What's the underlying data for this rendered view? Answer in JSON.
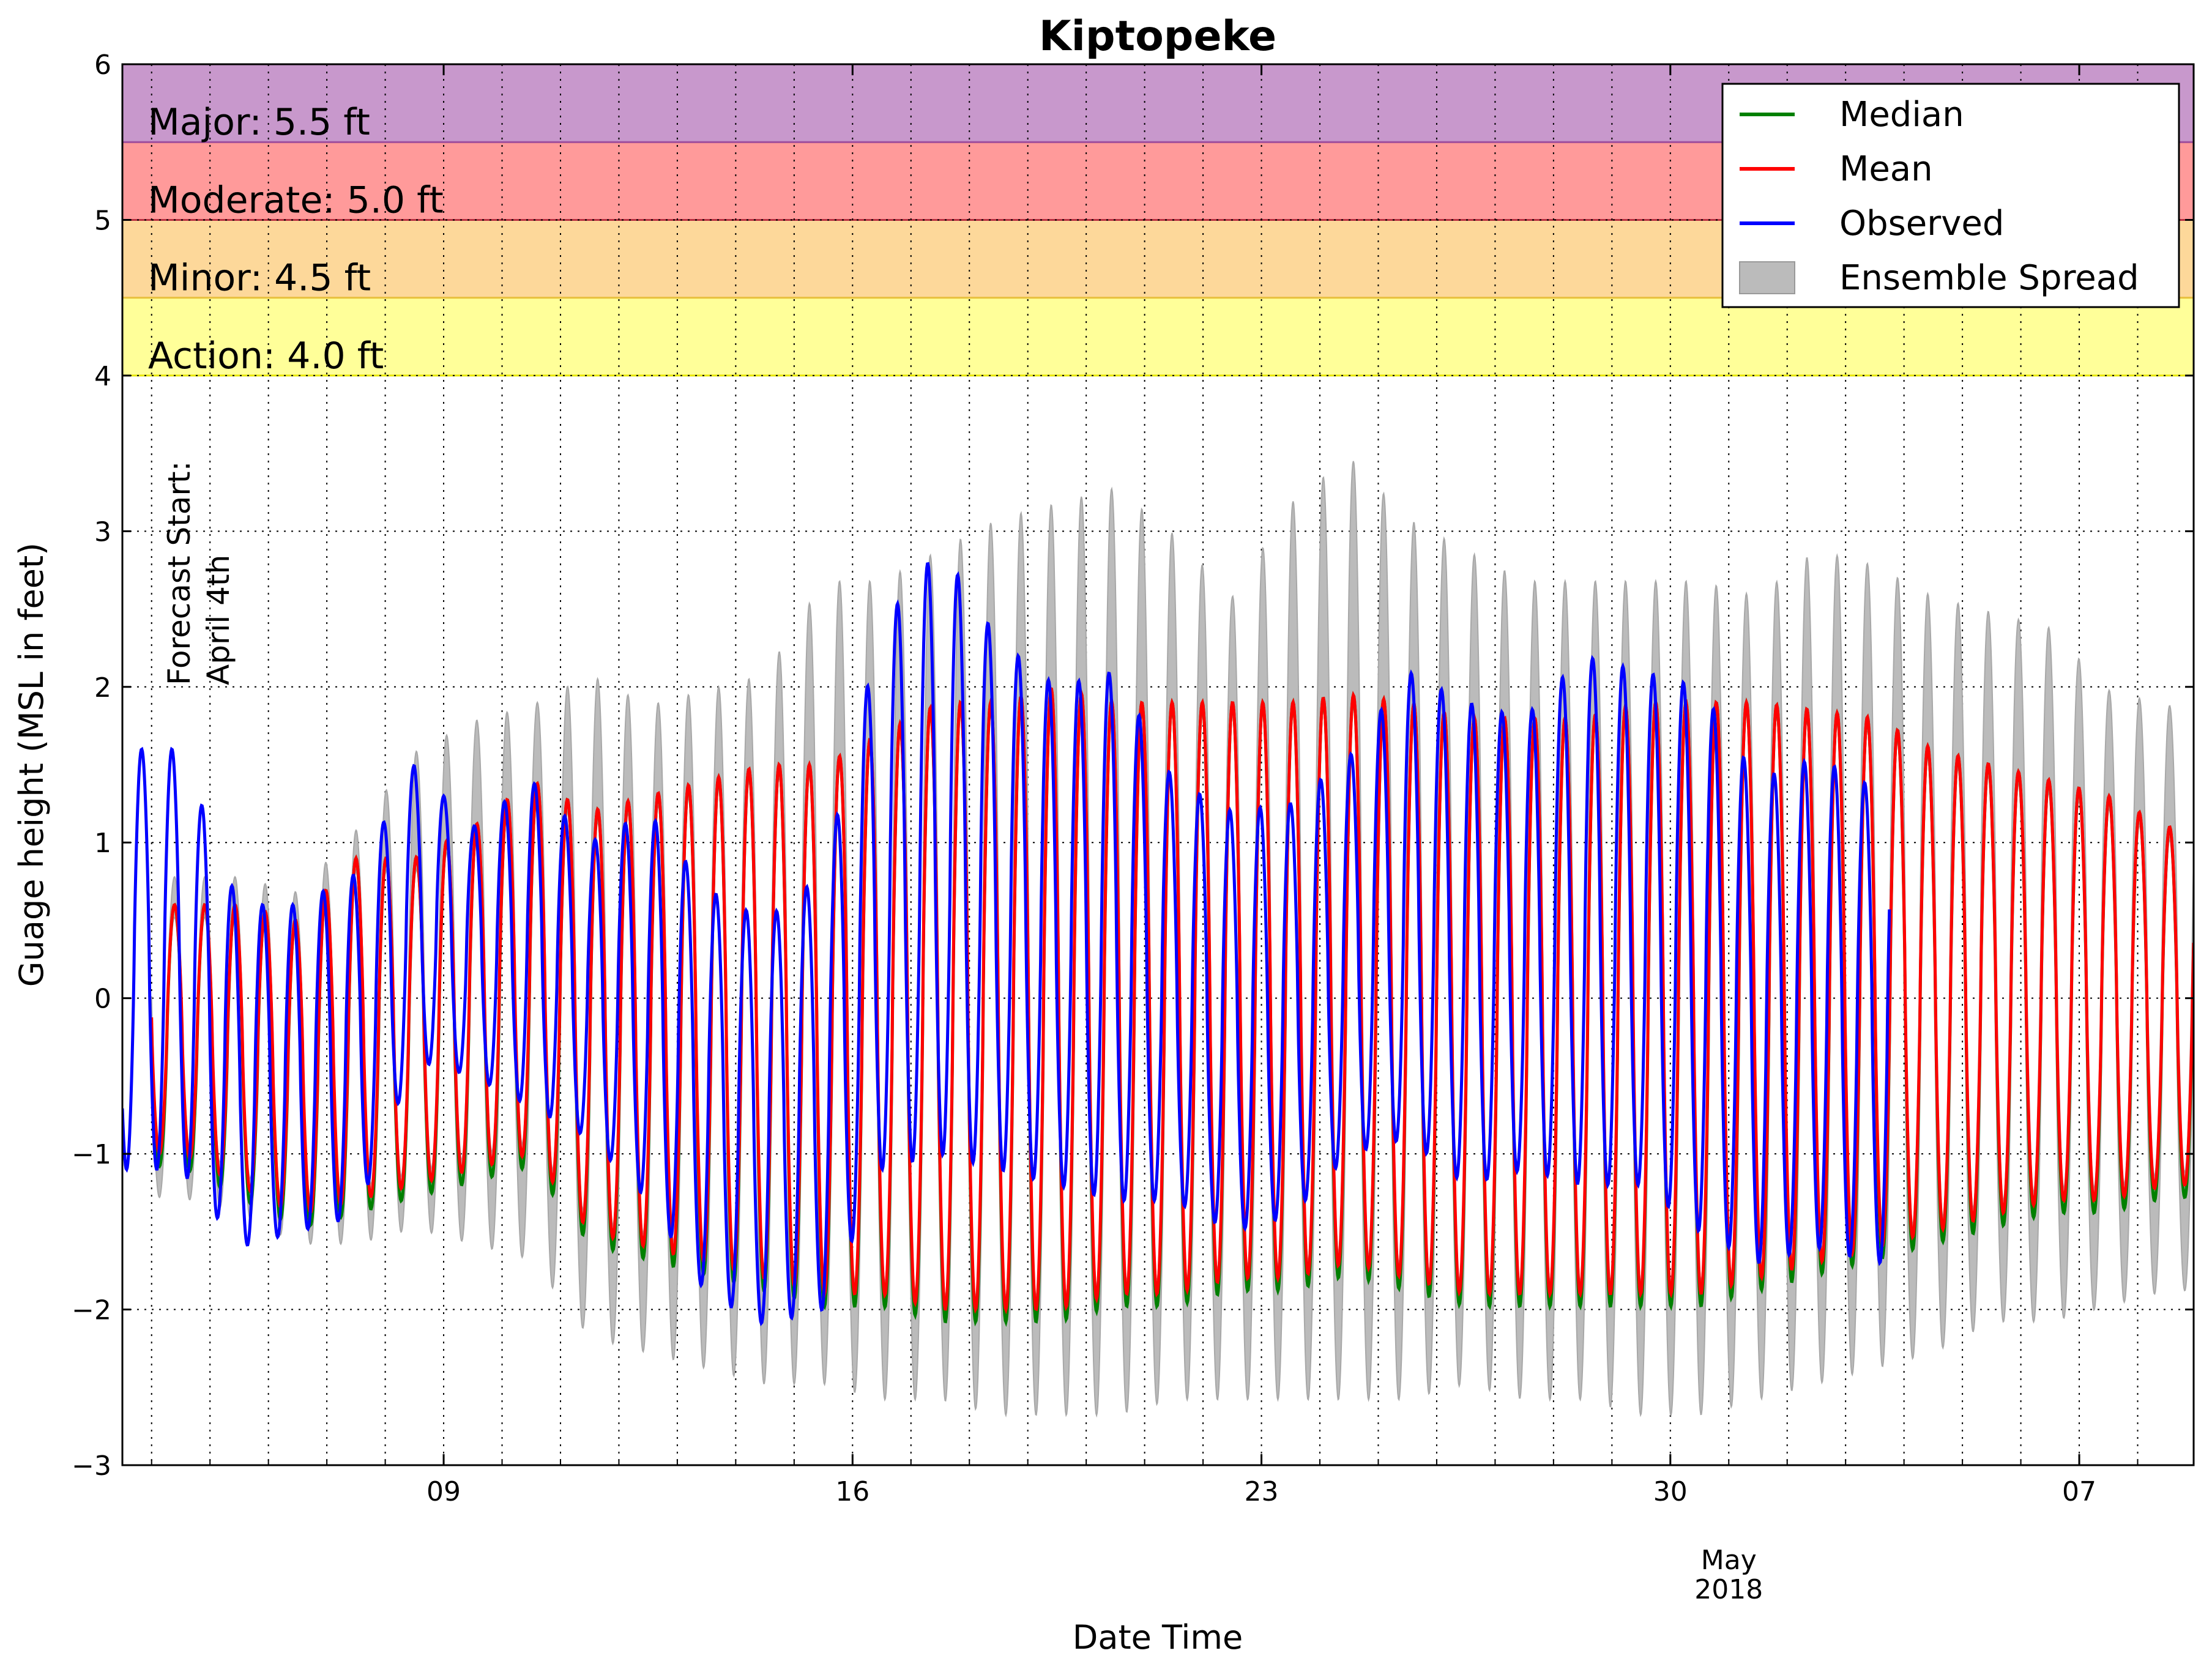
{
  "chart_data": {
    "type": "line",
    "title": "Kiptopeke",
    "xlabel": "Date Time",
    "ylabel": "Guage height (MSL in feet)",
    "xlim": [
      "2018-04-03T12:00",
      "2018-05-08T23:00"
    ],
    "ylim": [
      -3,
      6
    ],
    "yticks": [
      -3,
      -2,
      -1,
      0,
      1,
      2,
      3,
      4,
      5,
      6
    ],
    "ytick_labels": [
      "−3",
      "−2",
      "−1",
      "0",
      "1",
      "2",
      "3",
      "4",
      "5",
      "6"
    ],
    "xticks": [
      {
        "date": "2018-04-09",
        "label": "09"
      },
      {
        "date": "2018-04-16",
        "label": "16"
      },
      {
        "date": "2018-04-23",
        "label": "23"
      },
      {
        "date": "2018-04-30",
        "label": "30"
      },
      {
        "date": "2018-05-07",
        "label": "07"
      }
    ],
    "x_minor_label": {
      "date": "2018-05-01",
      "month": "May",
      "year": "2018"
    },
    "grid": "dotted, major and daily minor",
    "legend_position": "top-right",
    "legend": [
      {
        "label": "Median",
        "color": "#008000",
        "kind": "line"
      },
      {
        "label": "Mean",
        "color": "#ff0000",
        "kind": "line"
      },
      {
        "label": "Observed",
        "color": "#0000ff",
        "kind": "line"
      },
      {
        "label": "Ensemble Spread",
        "color": "#bbbbbb",
        "kind": "patch"
      }
    ],
    "flood_bands": [
      {
        "label": "Action: 4.0 ft",
        "from": 4.0,
        "to": 4.5,
        "color": "#ffff99",
        "edge": "#e6e600"
      },
      {
        "label": "Minor: 4.5 ft",
        "from": 4.5,
        "to": 5.0,
        "color": "#fdd89a",
        "edge": "#e8c040"
      },
      {
        "label": "Moderate: 5.0 ft",
        "from": 5.0,
        "to": 5.5,
        "color": "#ff9a9a",
        "edge": "#b83040"
      },
      {
        "label": "Major: 5.5 ft",
        "from": 5.5,
        "to": 6.0,
        "color": "#c898cc",
        "edge": "#a050a0"
      }
    ],
    "annotation": {
      "lines": [
        "Forecast Start:",
        "April 4th"
      ],
      "date": "2018-04-04"
    },
    "series_daily_peaks": {
      "dates": [
        "2018-04-04",
        "2018-04-05",
        "2018-04-06",
        "2018-04-07",
        "2018-04-08",
        "2018-04-09",
        "2018-04-10",
        "2018-04-11",
        "2018-04-12",
        "2018-04-13",
        "2018-04-14",
        "2018-04-15",
        "2018-04-16",
        "2018-04-17",
        "2018-04-18",
        "2018-04-19",
        "2018-04-20",
        "2018-04-21",
        "2018-04-22",
        "2018-04-23",
        "2018-04-24",
        "2018-04-25",
        "2018-04-26",
        "2018-04-27",
        "2018-04-28",
        "2018-04-29",
        "2018-04-30",
        "2018-05-01",
        "2018-05-02",
        "2018-05-03",
        "2018-05-04",
        "2018-05-05",
        "2018-05-06",
        "2018-05-07",
        "2018-05-08"
      ],
      "mean_high": [
        0.6,
        0.6,
        0.5,
        0.9,
        0.9,
        1.1,
        1.4,
        1.2,
        1.3,
        1.4,
        1.5,
        1.5,
        1.7,
        1.9,
        1.9,
        2.0,
        1.9,
        1.9,
        1.9,
        1.9,
        1.95,
        1.9,
        1.8,
        1.8,
        1.8,
        1.9,
        1.9,
        1.9,
        1.85,
        1.8,
        1.6,
        1.5,
        1.4,
        1.3,
        1.1
      ],
      "mean_low": [
        -1.0,
        -1.2,
        -1.4,
        -1.3,
        -1.2,
        -1.1,
        -1.0,
        -1.5,
        -1.6,
        -1.7,
        -1.8,
        -1.9,
        -1.9,
        -2.0,
        -2.0,
        -2.0,
        -1.9,
        -1.9,
        -1.8,
        -1.8,
        -1.7,
        -1.8,
        -1.9,
        -1.9,
        -1.9,
        -1.9,
        -1.9,
        -1.8,
        -1.7,
        -1.6,
        -1.5,
        -1.4,
        -1.3,
        -1.3,
        -1.2
      ],
      "spread_high": [
        0.7,
        0.7,
        0.6,
        1.0,
        1.5,
        1.7,
        1.8,
        2.0,
        1.8,
        1.9,
        2.0,
        2.6,
        2.6,
        2.8,
        3.0,
        3.1,
        3.2,
        2.9,
        2.5,
        3.1,
        3.4,
        3.0,
        2.8,
        2.6,
        2.6,
        2.6,
        2.6,
        2.5,
        2.8,
        2.7,
        2.5,
        2.4,
        2.3,
        1.9,
        1.8
      ],
      "spread_low": [
        -1.2,
        -1.3,
        -1.5,
        -1.5,
        -1.4,
        -1.5,
        -1.6,
        -2.1,
        -2.2,
        -2.3,
        -2.4,
        -2.4,
        -2.5,
        -2.5,
        -2.6,
        -2.6,
        -2.6,
        -2.5,
        -2.5,
        -2.5,
        -2.5,
        -2.5,
        -2.4,
        -2.5,
        -2.5,
        -2.6,
        -2.6,
        -2.5,
        -2.4,
        -2.3,
        -2.2,
        -2.0,
        -2.0,
        -1.9,
        -1.8
      ],
      "observed_high": [
        1.6,
        0.6,
        0.6,
        0.8,
        1.5,
        1.1,
        1.4,
        1.0,
        1.2,
        0.7,
        0.5,
        0.8,
        2.4,
        2.9,
        2.3,
        2.0,
        2.1,
        1.4,
        1.2,
        1.25,
        1.55,
        2.1,
        1.9,
        1.8,
        2.2,
        2.1,
        2.0,
        1.4,
        1.55,
        1.35,
        null,
        null,
        null,
        null,
        null
      ],
      "observed_low": [
        -1.1,
        -1.6,
        -1.5,
        -1.4,
        -0.4,
        -0.5,
        -0.7,
        -0.9,
        -1.3,
        -1.9,
        -2.1,
        -2.0,
        -1.1,
        -1.0,
        -1.1,
        -1.2,
        -1.3,
        -1.3,
        -1.5,
        -1.4,
        -1.0,
        -0.9,
        -1.2,
        -1.1,
        -1.2,
        -1.2,
        -1.5,
        -1.7,
        -1.6,
        -1.7,
        null,
        null,
        null,
        null,
        null
      ]
    }
  }
}
